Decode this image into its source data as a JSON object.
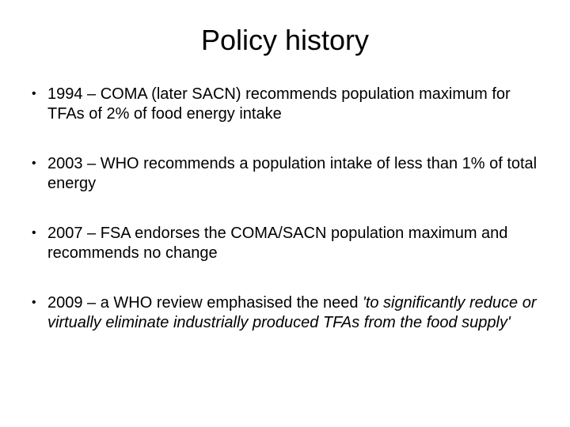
{
  "title": "Policy history",
  "bullets": {
    "b0": "1994 – COMA (later SACN) recommends population maximum for TFAs of 2% of food energy intake",
    "b1": "2003 – WHO recommends a population intake of less than 1% of total energy",
    "b2": "2007 – FSA endorses the COMA/SACN population maximum and recommends no change",
    "b3_pre": "2009 – a WHO review emphasised the need ",
    "b3_italic": "'to significantly reduce or virtually eliminate industrially produced TFAs from the food supply'"
  },
  "colors": {
    "background": "#ffffff",
    "text": "#000000"
  },
  "typography": {
    "title_fontsize": 36,
    "body_fontsize": 20,
    "font_family": "Arial"
  }
}
